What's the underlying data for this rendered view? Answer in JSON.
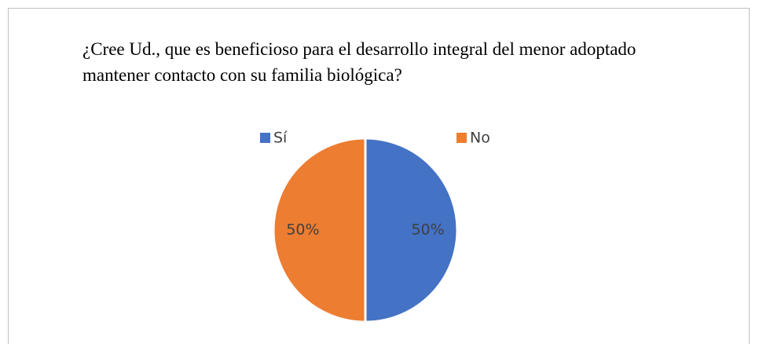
{
  "chart_data": {
    "type": "pie",
    "title": "¿Cree Ud., que es beneficioso para el desarrollo integral del menor adoptado mantener contacto con su familia biológica?",
    "categories": [
      "Sí",
      "No"
    ],
    "values": [
      50,
      50
    ],
    "value_labels": [
      "50%",
      "50%"
    ],
    "colors": [
      "#4472c4",
      "#ed7d31"
    ],
    "legend": "top"
  }
}
